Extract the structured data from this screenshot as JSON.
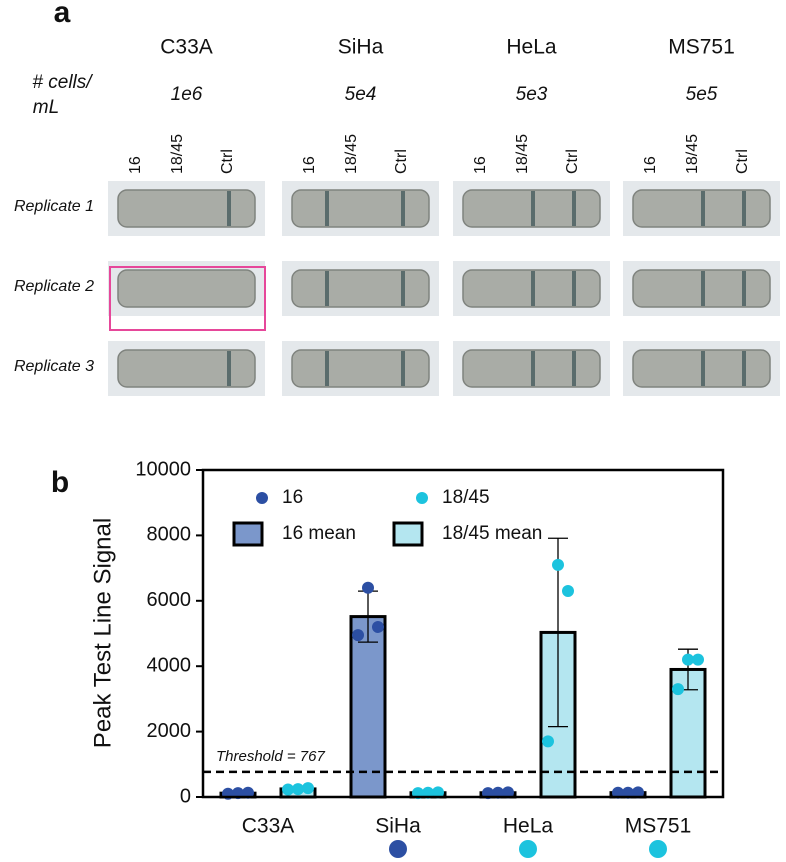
{
  "panel_a": {
    "label": "a",
    "cell_lines": [
      "C33A",
      "SiHa",
      "HeLa",
      "MS751"
    ],
    "row_header": [
      "# cells/",
      "mL"
    ],
    "concentrations": [
      "1e6",
      "5e4",
      "5e3",
      "5e5"
    ],
    "strip_labels": [
      "16",
      "18/45",
      "Ctrl"
    ],
    "replicates": [
      "Replicate 1",
      "Replicate 2",
      "Replicate 3"
    ]
  },
  "chart_data": {
    "type": "bar",
    "label": "b",
    "ylabel": "Peak Test Line Signal",
    "categories": [
      "C33A",
      "SiHa",
      "HeLa",
      "MS751"
    ],
    "ylim": [
      0,
      10000
    ],
    "yticks": [
      0,
      2000,
      4000,
      6000,
      8000,
      10000
    ],
    "series": [
      {
        "name": "16 mean",
        "color": "#7b97cb",
        "values": [
          117,
          5517,
          130,
          133
        ],
        "errors": [
          15,
          780,
          10,
          6
        ]
      },
      {
        "name": "18/45 mean",
        "color": "#b4e6f0",
        "values": [
          247,
          130,
          5033,
          3900
        ],
        "errors": [
          20,
          10,
          2880,
          620
        ]
      }
    ],
    "points": [
      {
        "name": "16",
        "color": "#2c4fa3",
        "values": [
          [
            100,
            120,
            130
          ],
          [
            4950,
            6400,
            5200
          ],
          [
            120,
            130,
            140
          ],
          [
            130,
            130,
            140
          ]
        ]
      },
      {
        "name": "18/45",
        "color": "#1cc3de",
        "values": [
          [
            230,
            240,
            270
          ],
          [
            120,
            130,
            140
          ],
          [
            1700,
            7100,
            6300
          ],
          [
            3300,
            4200,
            4200
          ]
        ]
      }
    ],
    "threshold": {
      "value": 767,
      "label": "Threshold = 767"
    }
  }
}
